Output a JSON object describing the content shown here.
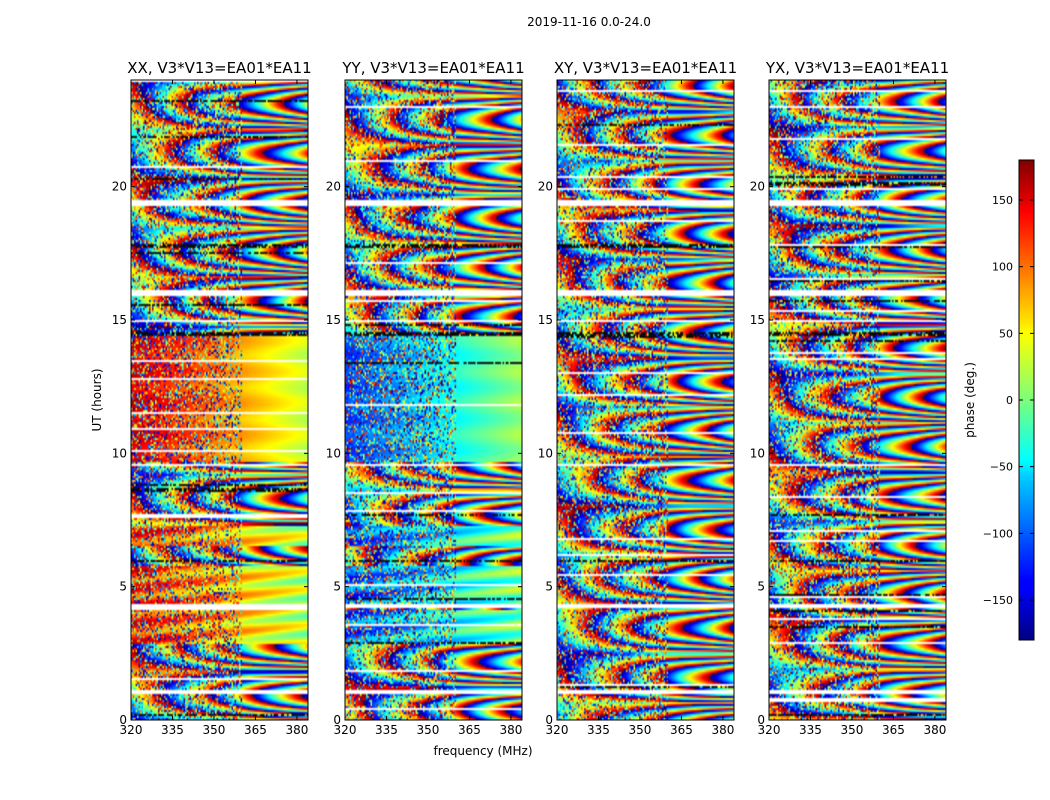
{
  "figure": {
    "suptitle": "2019-11-16 0.0-24.0",
    "shared_ylabel": "UT (hours)",
    "shared_xlabel": "frequency (MHz)"
  },
  "colorbar": {
    "label": "phase (deg.)",
    "range": [
      -180,
      180
    ],
    "ticks": [
      {
        "value": 150,
        "label": "150"
      },
      {
        "value": 100,
        "label": "100"
      },
      {
        "value": 50,
        "label": "50"
      },
      {
        "value": 0,
        "label": "0"
      },
      {
        "value": -50,
        "label": "−50"
      },
      {
        "value": -100,
        "label": "−100"
      },
      {
        "value": -150,
        "label": "−150"
      }
    ],
    "colormap": "jet"
  },
  "chart_data": [
    {
      "type": "heatmap",
      "title": "XX, V3*V13=EA01*EA11",
      "xlim": [
        320,
        384
      ],
      "ylim": [
        0,
        24
      ],
      "xticks": [
        320,
        335,
        350,
        365,
        380
      ],
      "yticks": [
        0,
        5,
        10,
        15,
        20
      ],
      "z": "phase (deg.) vs frequency (MHz) and UT (hours)"
    },
    {
      "type": "heatmap",
      "title": "YY, V3*V13=EA01*EA11",
      "xlim": [
        320,
        384
      ],
      "ylim": [
        0,
        24
      ],
      "xticks": [
        320,
        335,
        350,
        365,
        380
      ],
      "yticks": [
        0,
        5,
        10,
        15,
        20
      ],
      "z": "phase (deg.) vs frequency (MHz) and UT (hours)"
    },
    {
      "type": "heatmap",
      "title": "XY, V3*V13=EA01*EA11",
      "xlim": [
        320,
        384
      ],
      "ylim": [
        0,
        24
      ],
      "xticks": [
        320,
        335,
        350,
        365,
        380
      ],
      "yticks": [
        0,
        5,
        10,
        15,
        20
      ],
      "z": "phase (deg.) vs frequency (MHz) and UT (hours)"
    },
    {
      "type": "heatmap",
      "title": "YX, V3*V13=EA01*EA11",
      "xlim": [
        320,
        384
      ],
      "ylim": [
        0,
        24
      ],
      "xticks": [
        320,
        335,
        350,
        365,
        380
      ],
      "yticks": [
        0,
        5,
        10,
        15,
        20
      ],
      "z": "phase (deg.) vs frequency (MHz) and UT (hours)"
    }
  ]
}
